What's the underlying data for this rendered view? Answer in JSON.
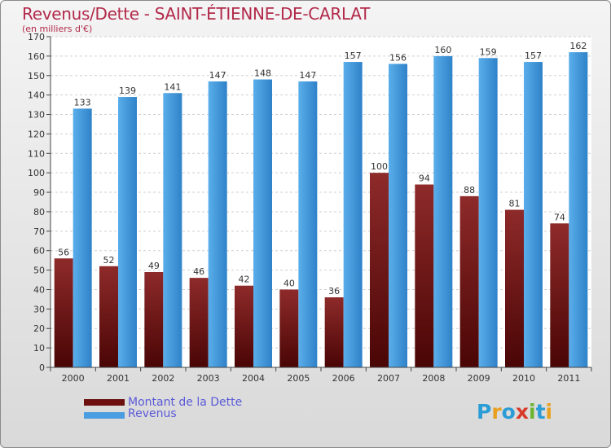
{
  "page": {
    "title": "Revenus/Dette - SAINT-ÉTIENNE-DE-CARLAT",
    "subtitle": "(en milliers d'€)"
  },
  "chart_data": {
    "type": "bar",
    "title": "Revenus/Dette - SAINT-ÉTIENNE-DE-CARLAT",
    "subtitle": "(en milliers d'€)",
    "categories": [
      "2000",
      "2001",
      "2002",
      "2003",
      "2004",
      "2005",
      "2006",
      "2007",
      "2008",
      "2009",
      "2010",
      "2011"
    ],
    "series": [
      {
        "name": "Montant de la Dette",
        "color": "#7a1a1a",
        "values": [
          56,
          52,
          49,
          46,
          42,
          40,
          36,
          100,
          94,
          88,
          81,
          74
        ]
      },
      {
        "name": "Revenus",
        "color": "#3d8fd6",
        "values": [
          133,
          139,
          141,
          147,
          148,
          147,
          157,
          156,
          160,
          159,
          157,
          162
        ]
      }
    ],
    "ylim": [
      0,
      170
    ],
    "yticks": [
      0,
      10,
      20,
      30,
      40,
      50,
      60,
      70,
      80,
      90,
      100,
      110,
      120,
      130,
      140,
      150,
      160,
      170
    ],
    "grid": true,
    "legend": "bottom-left"
  },
  "legend": {
    "items": [
      {
        "label": "Montant de la Dette",
        "color": "#6b0f0f"
      },
      {
        "label": "Revenus",
        "color": "#4a9de0"
      }
    ]
  },
  "logo": {
    "letters": [
      "P",
      "r",
      "o",
      "x",
      "i",
      "t",
      "i"
    ],
    "colors": [
      "#2a9cd6",
      "#e8a020",
      "#2a9cd6",
      "#d83a2a",
      "#6ab430",
      "#2a9cd6",
      "#e8a020"
    ]
  }
}
